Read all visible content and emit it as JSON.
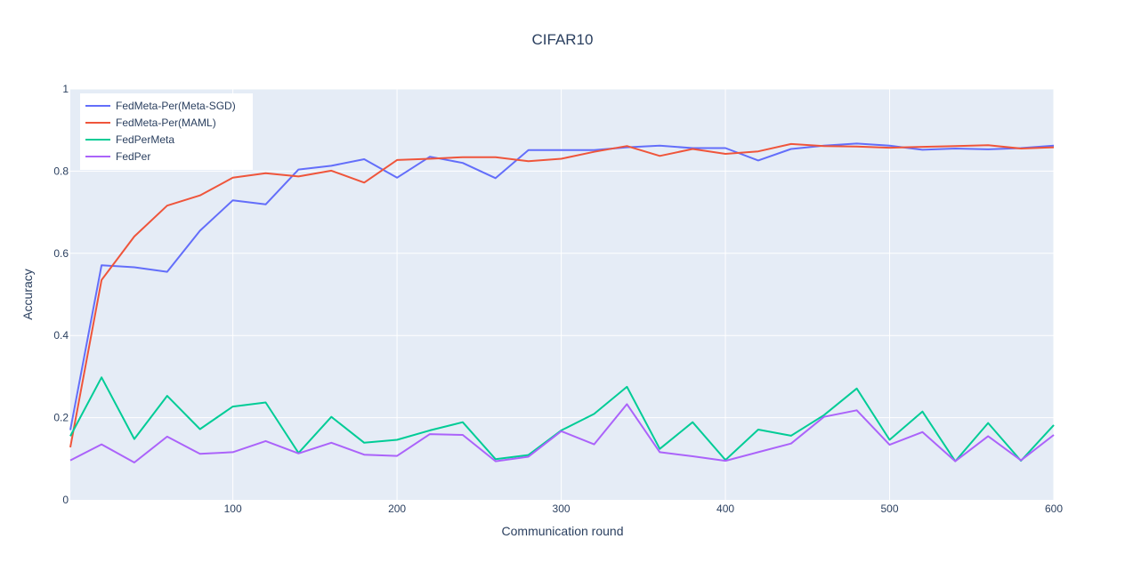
{
  "chart_data": {
    "type": "line",
    "title": "CIFAR10",
    "xlabel": "Communication round",
    "ylabel": "Accuracy",
    "xlim": [
      1,
      600
    ],
    "ylim": [
      0,
      1
    ],
    "xticks": [
      100,
      200,
      300,
      400,
      500,
      600
    ],
    "yticks": [
      0,
      0.2,
      0.4,
      0.6,
      0.8,
      1
    ],
    "ytick_labels": [
      "0",
      "0.2",
      "0.4",
      "0.6",
      "0.8",
      "1"
    ],
    "grid": true,
    "legend_position": "top-left",
    "colors": {
      "plot_bg": "#e5ecf6",
      "grid": "#ffffff",
      "text": "#2a3f5f"
    },
    "x": [
      1,
      20,
      40,
      60,
      80,
      100,
      120,
      140,
      160,
      180,
      200,
      220,
      240,
      260,
      280,
      300,
      320,
      340,
      360,
      380,
      400,
      420,
      440,
      460,
      480,
      500,
      520,
      540,
      560,
      580,
      600
    ],
    "series": [
      {
        "name": "FedMeta-Per(Meta-SGD)",
        "color": "#636efa",
        "values": [
          0.17,
          0.571,
          0.566,
          0.555,
          0.655,
          0.729,
          0.719,
          0.804,
          0.813,
          0.829,
          0.784,
          0.835,
          0.82,
          0.783,
          0.851,
          0.851,
          0.851,
          0.858,
          0.862,
          0.856,
          0.856,
          0.826,
          0.854,
          0.862,
          0.867,
          0.862,
          0.852,
          0.855,
          0.853,
          0.856,
          0.862
        ]
      },
      {
        "name": "FedMeta-Per(MAML)",
        "color": "#ef553b",
        "values": [
          0.128,
          0.535,
          0.641,
          0.716,
          0.741,
          0.784,
          0.795,
          0.787,
          0.801,
          0.772,
          0.827,
          0.83,
          0.834,
          0.834,
          0.824,
          0.83,
          0.847,
          0.861,
          0.837,
          0.854,
          0.842,
          0.848,
          0.866,
          0.861,
          0.86,
          0.857,
          0.859,
          0.861,
          0.863,
          0.855,
          0.858
        ]
      },
      {
        "name": "FedPerMeta",
        "color": "#00cc96",
        "values": [
          0.155,
          0.298,
          0.148,
          0.253,
          0.172,
          0.227,
          0.237,
          0.114,
          0.202,
          0.139,
          0.146,
          0.169,
          0.189,
          0.099,
          0.109,
          0.169,
          0.209,
          0.275,
          0.124,
          0.189,
          0.097,
          0.171,
          0.156,
          0.206,
          0.271,
          0.146,
          0.215,
          0.094,
          0.187,
          0.095,
          0.182
        ]
      },
      {
        "name": "FedPer",
        "color": "#ab63fa",
        "values": [
          0.096,
          0.135,
          0.091,
          0.154,
          0.112,
          0.116,
          0.143,
          0.113,
          0.139,
          0.11,
          0.107,
          0.16,
          0.158,
          0.094,
          0.105,
          0.167,
          0.135,
          0.233,
          0.116,
          0.106,
          0.095,
          0.116,
          0.137,
          0.202,
          0.218,
          0.134,
          0.165,
          0.094,
          0.155,
          0.096,
          0.158
        ]
      }
    ]
  }
}
